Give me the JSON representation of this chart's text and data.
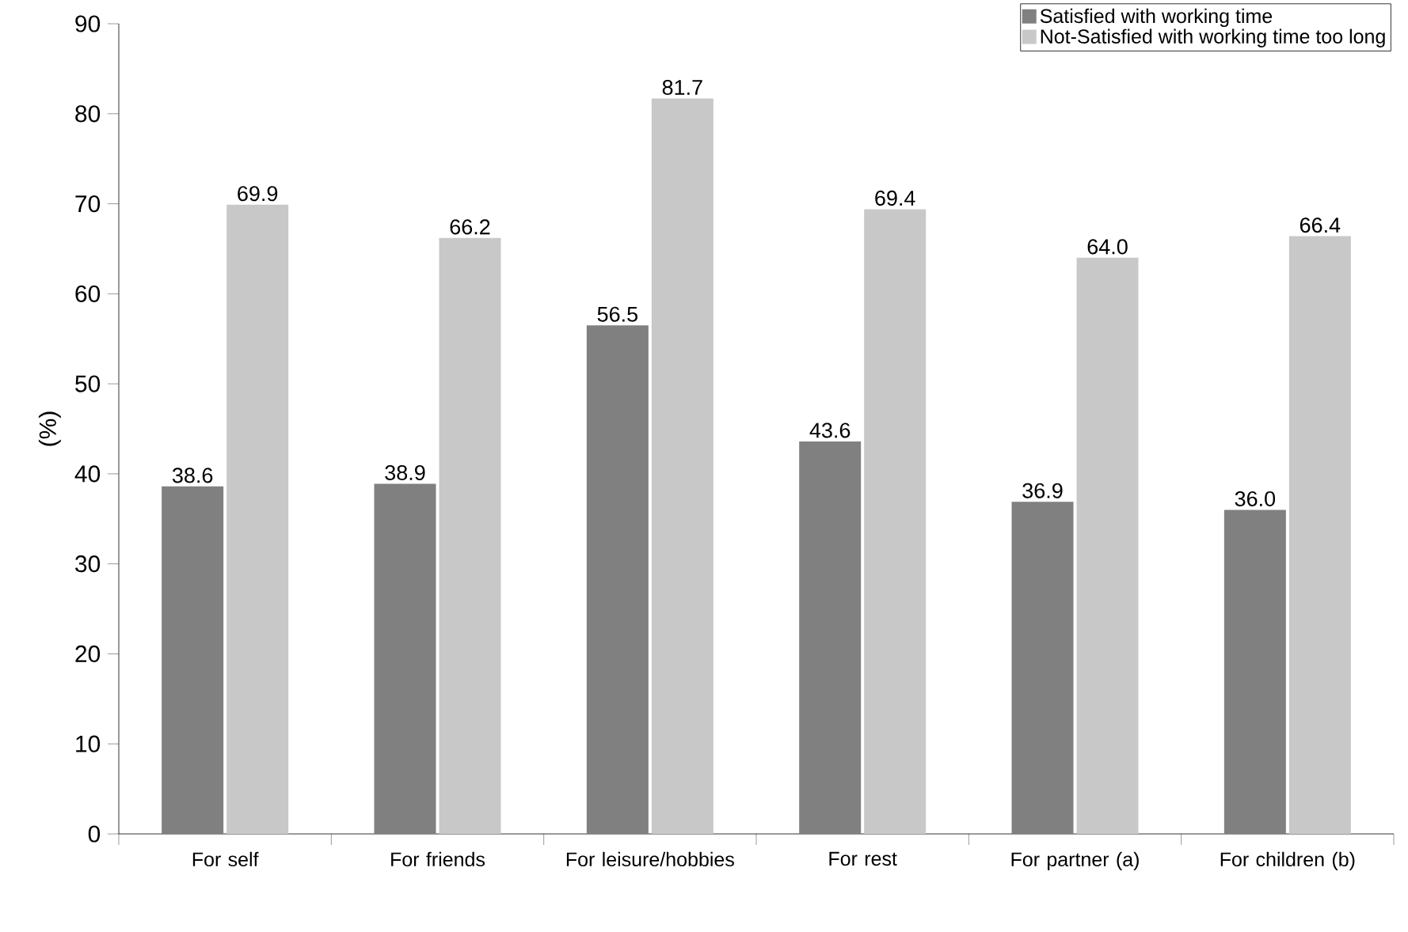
{
  "chart_data": {
    "type": "bar",
    "ylabel": "(%)",
    "categories": [
      "For self",
      "For friends",
      "For leisure/hobbies",
      "For rest",
      "For partner (a)",
      "For children (b)"
    ],
    "series": [
      {
        "name": "Satisfied with working time",
        "color": "#808080",
        "values": [
          38.6,
          38.9,
          56.5,
          43.6,
          36.9,
          36.0
        ],
        "value_labels": [
          "38.6",
          "38.9",
          "56.5",
          "43.6",
          "36.9",
          "36.0"
        ]
      },
      {
        "name": "Not-Satisfied with working time too long",
        "color": "#c8c8c8",
        "values": [
          69.9,
          66.2,
          81.7,
          69.4,
          64.0,
          66.4
        ],
        "value_labels": [
          "69.9",
          "66.2",
          "81.7",
          "69.4",
          "64.0",
          "66.4"
        ]
      }
    ],
    "ylim": [
      0,
      90
    ],
    "yticks": [
      0,
      10,
      20,
      30,
      40,
      50,
      60,
      70,
      80,
      90
    ],
    "grid": false,
    "legend": "top right"
  }
}
